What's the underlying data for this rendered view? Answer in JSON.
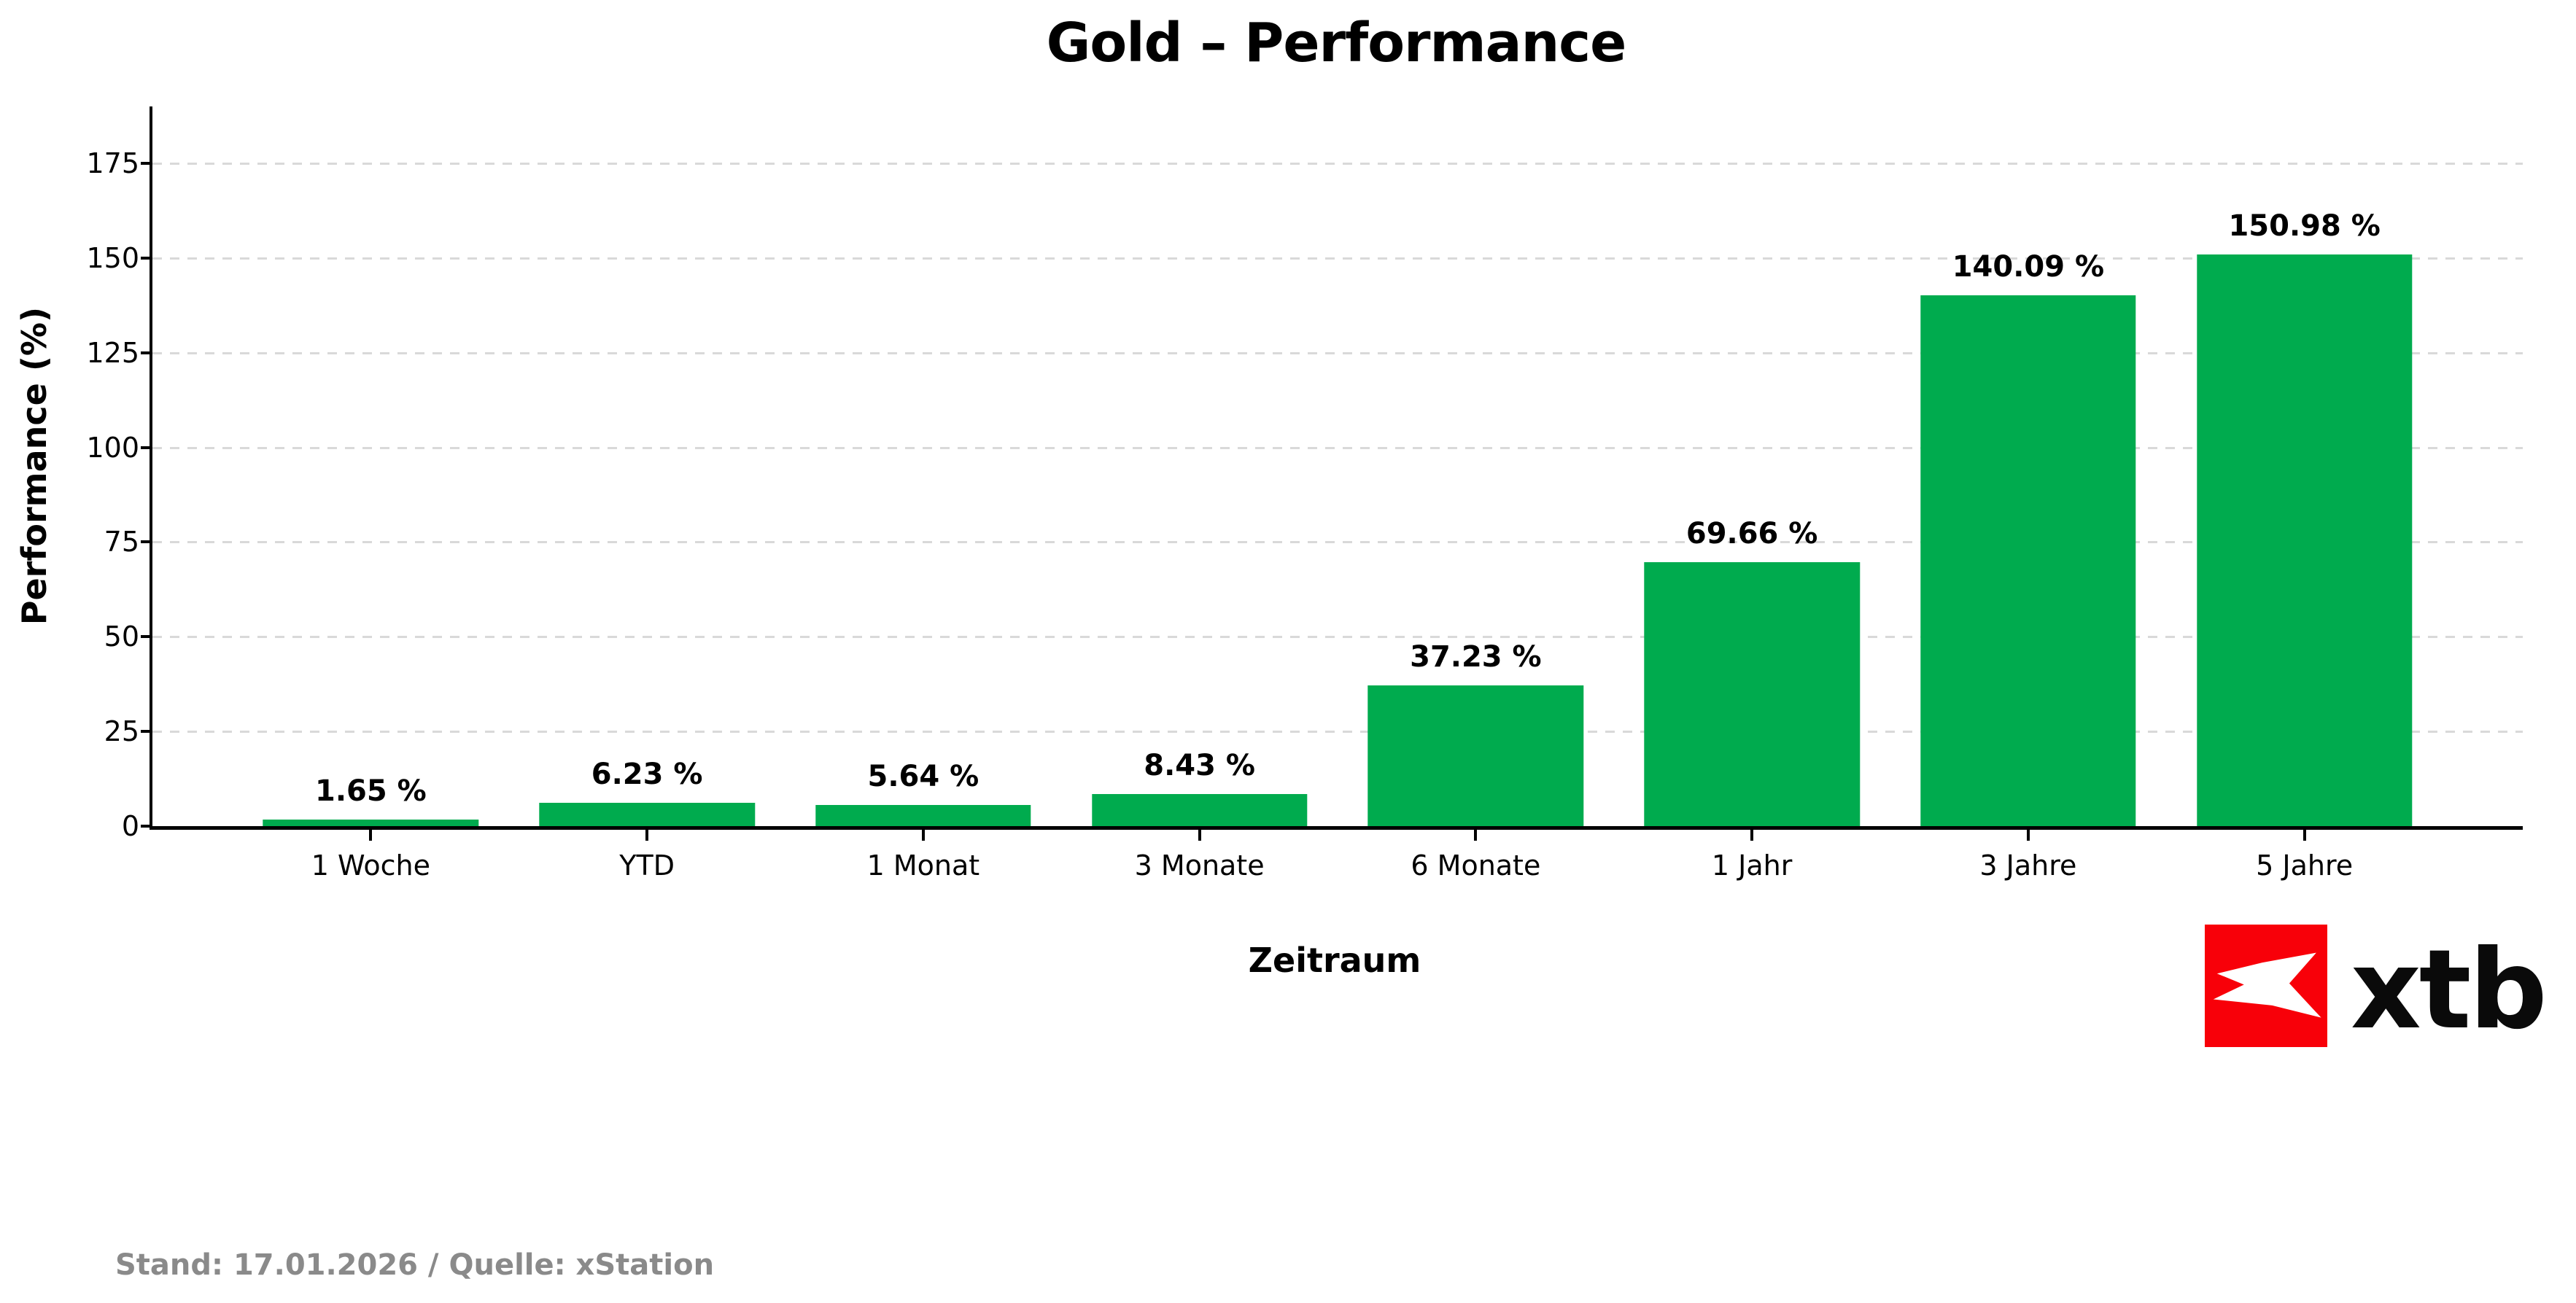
{
  "title": "Gold – Performance",
  "chart_data": {
    "type": "bar",
    "title": "Gold – Performance",
    "categories": [
      "1 Woche",
      "YTD",
      "1 Monat",
      "3 Monate",
      "6 Monate",
      "1 Jahr",
      "3 Jahre",
      "5 Jahre"
    ],
    "values": [
      1.65,
      6.23,
      5.64,
      8.43,
      37.23,
      69.66,
      140.09,
      150.98
    ],
    "value_labels": [
      "1.65 %",
      "6.23 %",
      "5.64 %",
      "8.43 %",
      "37.23 %",
      "69.66 %",
      "140.09 %",
      "150.98 %"
    ],
    "xlabel": "Zeitraum",
    "ylabel": "Performance (%)",
    "ylim": [
      0,
      190
    ],
    "yticks": [
      0,
      25,
      50,
      75,
      100,
      125,
      150,
      175
    ],
    "bar_color": "#00ab4e",
    "grid": "horizontal-dashed",
    "gridline_color": "#d9d9d9",
    "legend_position": "none"
  },
  "logo": {
    "text": "xtb",
    "red": "#f80009",
    "mark": "x-bird-mark"
  },
  "footer": {
    "text": "Stand: 17.01.2026 / Quelle: xStation"
  }
}
